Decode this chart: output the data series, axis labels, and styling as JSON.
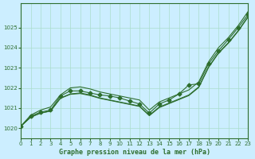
{
  "title": "Graphe pression niveau de la mer (hPa)",
  "background_color": "#cceeff",
  "grid_color": "#aaddcc",
  "line_color": "#2d6e2d",
  "xlim": [
    0,
    23
  ],
  "ylim": [
    1019.5,
    1026.2
  ],
  "yticks": [
    1020,
    1021,
    1022,
    1023,
    1024,
    1025
  ],
  "xticks": [
    0,
    1,
    2,
    3,
    4,
    5,
    6,
    7,
    8,
    9,
    10,
    11,
    12,
    13,
    14,
    15,
    16,
    17,
    18,
    19,
    20,
    21,
    22,
    23
  ],
  "main_series": [
    1020.1,
    1020.6,
    1020.8,
    1020.9,
    1021.6,
    1021.85,
    1021.85,
    1021.75,
    1021.65,
    1021.6,
    1021.5,
    1021.35,
    1021.2,
    1020.75,
    1021.2,
    1021.4,
    1021.7,
    1022.15,
    1022.2,
    1023.2,
    1023.85,
    1024.4,
    1025.0,
    1025.65
  ],
  "envelope_top": [
    1020.1,
    1020.65,
    1020.9,
    1021.05,
    1021.65,
    1022.0,
    1022.05,
    1021.95,
    1021.8,
    1021.7,
    1021.6,
    1021.5,
    1021.4,
    1020.9,
    1021.3,
    1021.5,
    1021.7,
    1021.9,
    1022.3,
    1023.3,
    1024.0,
    1024.5,
    1025.1,
    1025.8
  ],
  "envelope_bottom": [
    1020.1,
    1020.55,
    1020.75,
    1020.85,
    1021.5,
    1021.7,
    1021.75,
    1021.65,
    1021.5,
    1021.4,
    1021.3,
    1021.2,
    1021.1,
    1020.65,
    1021.05,
    1021.25,
    1021.45,
    1021.65,
    1022.05,
    1023.05,
    1023.75,
    1024.25,
    1024.85,
    1025.55
  ],
  "diag_line": [
    1020.1,
    1020.55,
    1020.75,
    1020.85,
    1021.48,
    1021.68,
    1021.72,
    1021.62,
    1021.48,
    1021.38,
    1021.28,
    1021.18,
    1021.08,
    1020.62,
    1021.02,
    1021.22,
    1021.42,
    1021.62,
    1022.02,
    1023.02,
    1023.72,
    1024.22,
    1024.82,
    1025.52
  ]
}
